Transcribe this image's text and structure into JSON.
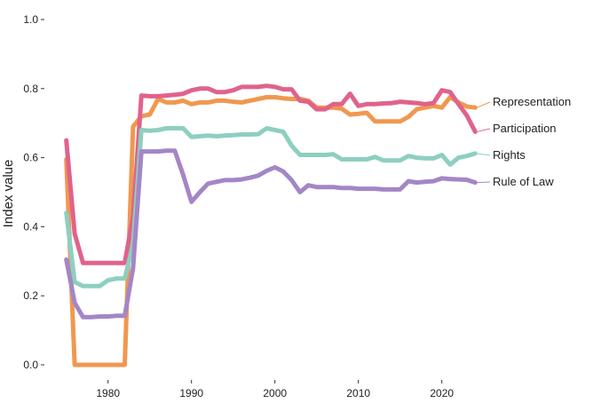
{
  "chart_data": {
    "type": "line",
    "title": "",
    "xlabel": "",
    "ylabel": "Index value",
    "xlim": [
      1974.5,
      2024.5
    ],
    "ylim": [
      0,
      1
    ],
    "xticks": [
      1980,
      1990,
      2000,
      2010,
      2020
    ],
    "xtick_labels": [
      "1980",
      "1990",
      "2000",
      "2010",
      "2020"
    ],
    "yticks": [
      0,
      0.2,
      0.4,
      0.6,
      0.8,
      1.0
    ],
    "ytick_labels": [
      "0.0",
      "0.2",
      "0.4",
      "0.6",
      "0.8",
      "1.0"
    ],
    "grid": false,
    "legend": "direct labels at right end of each line",
    "x": [
      1975,
      1976,
      1977,
      1978,
      1979,
      1980,
      1981,
      1982,
      1983,
      1984,
      1985,
      1986,
      1987,
      1988,
      1989,
      1990,
      1991,
      1992,
      1993,
      1994,
      1995,
      1996,
      1997,
      1998,
      1999,
      2000,
      2001,
      2002,
      2003,
      2004,
      2005,
      2006,
      2007,
      2008,
      2009,
      2010,
      2011,
      2012,
      2013,
      2014,
      2015,
      2016,
      2017,
      2018,
      2019,
      2020,
      2021,
      2022,
      2023,
      2024
    ],
    "series": [
      {
        "name": "Representation",
        "color": "#f0984f",
        "values": [
          0.595,
          0.0,
          0.0,
          0.0,
          0.0,
          0.0,
          0.0,
          0.0,
          0.69,
          0.72,
          0.725,
          0.77,
          0.76,
          0.76,
          0.765,
          0.755,
          0.76,
          0.76,
          0.765,
          0.765,
          0.762,
          0.76,
          0.765,
          0.77,
          0.775,
          0.775,
          0.772,
          0.77,
          0.77,
          0.765,
          0.745,
          0.745,
          0.745,
          0.742,
          0.725,
          0.727,
          0.73,
          0.705,
          0.705,
          0.705,
          0.705,
          0.718,
          0.74,
          0.745,
          0.75,
          0.745,
          0.775,
          0.76,
          0.748,
          0.745
        ]
      },
      {
        "name": "Participation",
        "color": "#e0638a",
        "values": [
          0.65,
          0.38,
          0.295,
          0.295,
          0.295,
          0.295,
          0.295,
          0.295,
          0.43,
          0.78,
          0.778,
          0.778,
          0.78,
          0.782,
          0.785,
          0.795,
          0.8,
          0.8,
          0.79,
          0.79,
          0.795,
          0.805,
          0.805,
          0.805,
          0.808,
          0.805,
          0.798,
          0.798,
          0.765,
          0.762,
          0.74,
          0.74,
          0.755,
          0.755,
          0.785,
          0.75,
          0.755,
          0.755,
          0.757,
          0.758,
          0.762,
          0.76,
          0.758,
          0.755,
          0.758,
          0.795,
          0.79,
          0.755,
          0.722,
          0.675
        ]
      },
      {
        "name": "Rights",
        "color": "#8dcfc0",
        "values": [
          0.44,
          0.24,
          0.228,
          0.228,
          0.228,
          0.245,
          0.25,
          0.25,
          0.35,
          0.68,
          0.678,
          0.68,
          0.685,
          0.685,
          0.685,
          0.66,
          0.662,
          0.664,
          0.662,
          0.664,
          0.665,
          0.667,
          0.667,
          0.668,
          0.685,
          0.68,
          0.675,
          0.635,
          0.608,
          0.608,
          0.608,
          0.608,
          0.61,
          0.595,
          0.595,
          0.595,
          0.595,
          0.602,
          0.592,
          0.592,
          0.592,
          0.605,
          0.6,
          0.598,
          0.598,
          0.608,
          0.58,
          0.6,
          0.605,
          0.612
        ]
      },
      {
        "name": "Rule of Law",
        "color": "#a486c6",
        "values": [
          0.305,
          0.18,
          0.138,
          0.138,
          0.14,
          0.14,
          0.142,
          0.142,
          0.28,
          0.618,
          0.618,
          0.618,
          0.62,
          0.62,
          0.55,
          0.472,
          0.5,
          0.525,
          0.53,
          0.535,
          0.535,
          0.537,
          0.542,
          0.548,
          0.562,
          0.572,
          0.56,
          0.535,
          0.5,
          0.52,
          0.515,
          0.515,
          0.515,
          0.512,
          0.512,
          0.51,
          0.51,
          0.51,
          0.508,
          0.508,
          0.508,
          0.532,
          0.528,
          0.53,
          0.532,
          0.54,
          0.538,
          0.537,
          0.536,
          0.528
        ]
      }
    ]
  }
}
